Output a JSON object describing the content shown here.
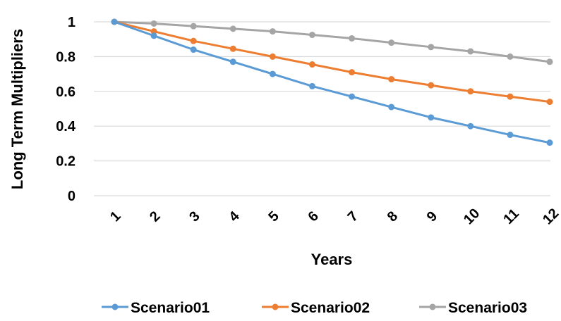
{
  "chart_data": {
    "type": "line",
    "xlabel": "Years",
    "ylabel": "Long Term Multipliers",
    "categories": [
      "1",
      "2",
      "3",
      "4",
      "5",
      "6",
      "7",
      "8",
      "9",
      "10",
      "11",
      "12"
    ],
    "y_ticks": [
      "0",
      "0.2",
      "0.4",
      "0.6",
      "0.8",
      "1"
    ],
    "ylim": [
      0,
      1
    ],
    "grid": true,
    "legend_position": "bottom",
    "series": [
      {
        "name": "Scenario01",
        "color": "#5b9bd5",
        "values": [
          1.0,
          0.92,
          0.84,
          0.77,
          0.7,
          0.63,
          0.57,
          0.51,
          0.45,
          0.4,
          0.35,
          0.305
        ]
      },
      {
        "name": "Scenario02",
        "color": "#ed7d31",
        "values": [
          1.0,
          0.945,
          0.89,
          0.845,
          0.8,
          0.755,
          0.71,
          0.67,
          0.635,
          0.6,
          0.57,
          0.54
        ]
      },
      {
        "name": "Scenario03",
        "color": "#a5a5a5",
        "values": [
          1.0,
          0.99,
          0.975,
          0.96,
          0.945,
          0.925,
          0.905,
          0.88,
          0.855,
          0.83,
          0.8,
          0.77
        ]
      }
    ]
  }
}
